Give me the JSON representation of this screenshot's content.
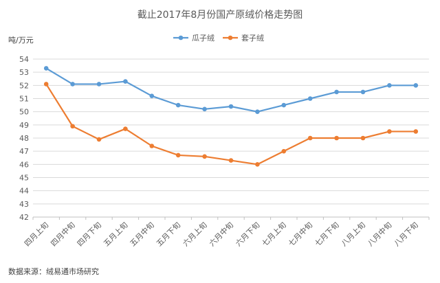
{
  "chart_data": {
    "type": "line",
    "title": "截止2017年8月份国产原绒价格走势图",
    "ylabel": "吨/万元",
    "xlabel": "",
    "categories": [
      "四月上旬",
      "四月中旬",
      "四月下旬",
      "五月上旬",
      "五月中旬",
      "五月下旬",
      "六月上旬",
      "六月中旬",
      "六月下旬",
      "七月上旬",
      "七月中旬",
      "七月下旬",
      "八月上旬",
      "八月中旬",
      "八月下旬"
    ],
    "series": [
      {
        "name": "瓜子绒",
        "color": "#5B9BD5",
        "values": [
          53.3,
          52.1,
          52.1,
          52.3,
          51.2,
          50.5,
          50.2,
          50.4,
          50.0,
          50.5,
          51.0,
          51.5,
          51.5,
          52.0,
          52.0
        ]
      },
      {
        "name": "套子绒",
        "color": "#ED7D31",
        "values": [
          52.1,
          48.9,
          47.9,
          48.7,
          47.4,
          46.7,
          46.6,
          46.3,
          46.0,
          47.0,
          48.0,
          48.0,
          48.0,
          48.5,
          48.5
        ]
      }
    ],
    "ylim": [
      42,
      54
    ],
    "yticks": [
      42,
      43,
      44,
      45,
      46,
      47,
      48,
      49,
      50,
      51,
      52,
      53,
      54
    ],
    "grid": true,
    "legend": "top-center",
    "source": "数据来源：绒易通市场研究"
  }
}
